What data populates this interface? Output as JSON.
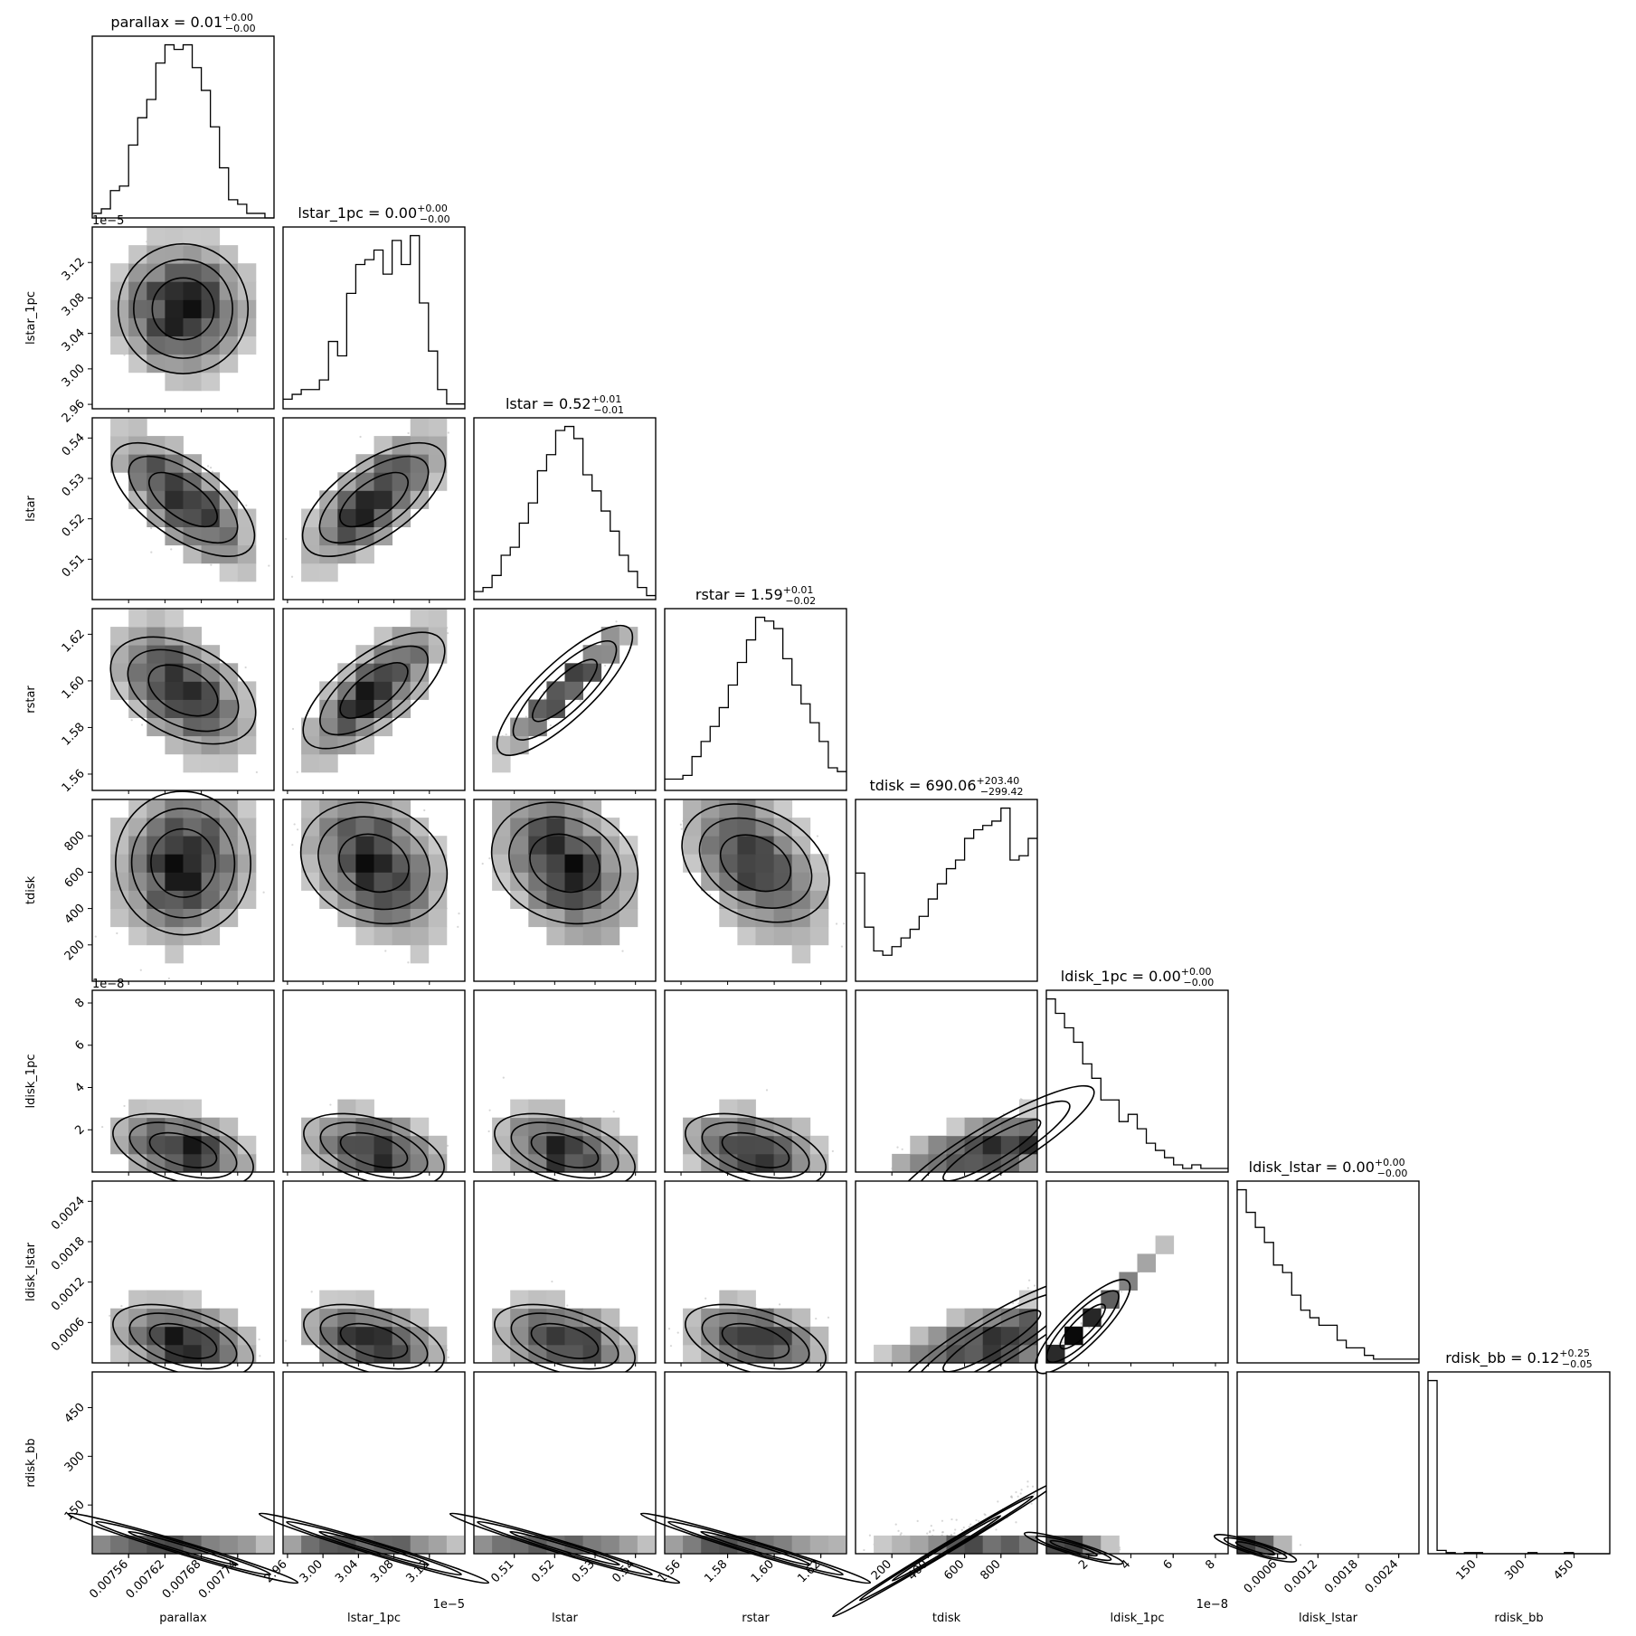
{
  "chart_data": {
    "type": "corner",
    "parameters": [
      "parallax",
      "lstar_1pc",
      "lstar",
      "rstar",
      "tdisk",
      "ldisk_1pc",
      "ldisk_lstar",
      "rdisk_bb"
    ],
    "titles": [
      {
        "name": "parallax",
        "median": "0.01",
        "plus": "+0.00",
        "minus": "−0.00"
      },
      {
        "name": "lstar_1pc",
        "median": "0.00",
        "plus": "+0.00",
        "minus": "−0.00"
      },
      {
        "name": "lstar",
        "median": "0.52",
        "plus": "+0.01",
        "minus": "−0.01"
      },
      {
        "name": "rstar",
        "median": "1.59",
        "plus": "+0.01",
        "minus": "−0.02"
      },
      {
        "name": "tdisk",
        "median": "690.06",
        "plus": "+203.40",
        "minus": "−299.42"
      },
      {
        "name": "ldisk_1pc",
        "median": "0.00",
        "plus": "+0.00",
        "minus": "−0.00"
      },
      {
        "name": "ldisk_lstar",
        "median": "0.00",
        "plus": "+0.00",
        "minus": "−0.00"
      },
      {
        "name": "rdisk_bb",
        "median": "0.12",
        "plus": "+0.25",
        "minus": "−0.05"
      }
    ],
    "ranges": [
      [
        0.0075,
        0.0078
      ],
      [
        2.955,
        3.16
      ],
      [
        0.5,
        0.545
      ],
      [
        1.553,
        1.631
      ],
      [
        0,
        1000
      ],
      [
        0,
        8.6
      ],
      [
        0,
        0.0027
      ],
      [
        0,
        560
      ]
    ],
    "ticks": [
      [
        "0.00756",
        "0.00762",
        "0.00768",
        "0.00774"
      ],
      [
        "2.96",
        "3.00",
        "3.04",
        "3.08",
        "3.12"
      ],
      [
        "0.51",
        "0.52",
        "0.53",
        "0.54"
      ],
      [
        "1.56",
        "1.58",
        "1.60",
        "1.62"
      ],
      [
        "200",
        "400",
        "600",
        "800"
      ],
      [
        "2",
        "4",
        "6",
        "8"
      ],
      [
        "0.0006",
        "0.0012",
        "0.0018",
        "0.0024"
      ],
      [
        "150",
        "300",
        "450"
      ]
    ],
    "offsets": {
      "lstar_1pc": "1e−5",
      "ldisk_1pc": "1e−8"
    },
    "diag_y_ticks": {
      "lstar_1pc": [
        "3.12",
        "3.08",
        "3.04",
        "3.00",
        "2.96"
      ]
    },
    "histograms": [
      [
        1,
        2,
        6,
        7,
        16,
        22,
        26,
        34,
        38,
        37,
        38,
        33,
        28,
        20,
        11,
        4,
        3,
        1,
        1,
        0
      ],
      [
        2,
        3,
        4,
        4,
        6,
        14,
        11,
        24,
        30,
        31,
        33,
        28,
        35,
        30,
        36,
        22,
        12,
        4,
        1,
        1
      ],
      [
        2,
        3,
        6,
        11,
        13,
        19,
        24,
        32,
        36,
        42,
        43,
        40,
        31,
        27,
        22,
        17,
        11,
        7,
        3,
        1
      ],
      [
        3,
        3,
        4,
        9,
        13,
        17,
        22,
        28,
        34,
        40,
        46,
        45,
        43,
        35,
        28,
        23,
        18,
        13,
        6,
        5
      ],
      [
        50,
        25,
        14,
        12,
        16,
        20,
        24,
        30,
        38,
        45,
        52,
        56,
        66,
        70,
        72,
        74,
        80,
        56,
        58,
        66
      ],
      [
        48,
        44,
        40,
        36,
        30,
        26,
        20,
        20,
        14,
        16,
        12,
        8,
        6,
        4,
        2,
        1,
        2,
        1,
        1,
        1
      ],
      [
        46,
        40,
        36,
        32,
        26,
        24,
        18,
        14,
        12,
        10,
        10,
        6,
        4,
        4,
        2,
        1,
        1,
        1,
        1,
        1
      ],
      [
        160,
        3,
        1,
        0,
        1,
        1,
        0,
        0,
        0,
        0,
        0,
        1,
        0,
        0,
        0,
        1,
        0,
        0,
        0,
        0
      ]
    ]
  }
}
